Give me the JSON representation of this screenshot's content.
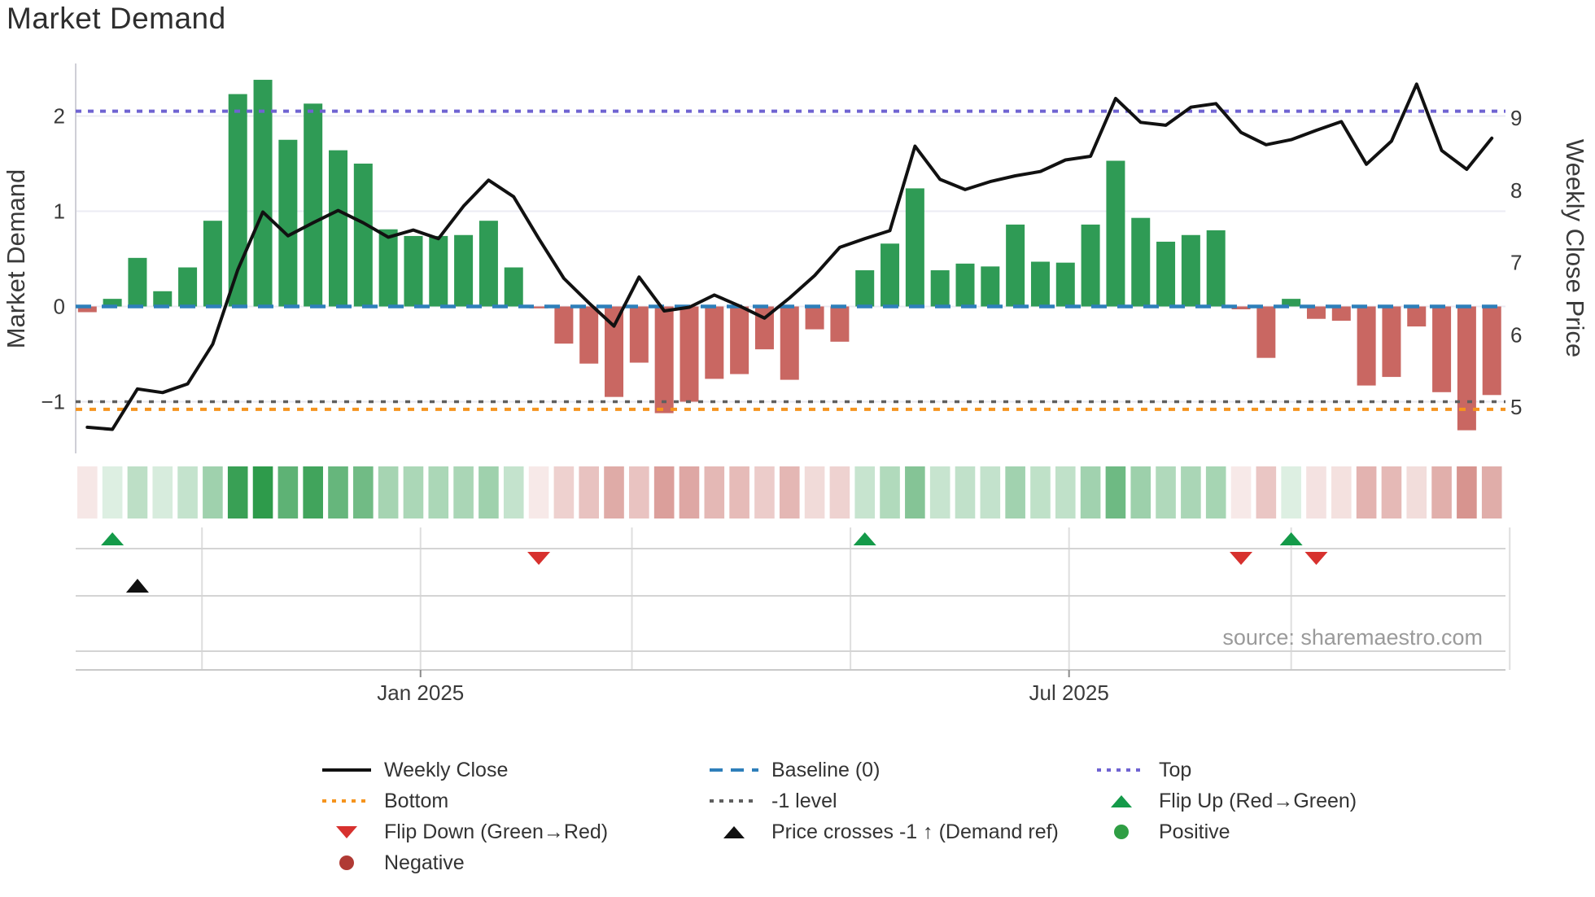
{
  "title": "Market Demand",
  "source": "source: sharemaestro.com",
  "axes": {
    "left_label": "Market Demand",
    "right_label": "Weekly Close Price",
    "left_ticks": [
      "2",
      "1",
      "0",
      "−1"
    ],
    "left_tick_values": [
      2,
      1,
      0,
      -1
    ],
    "right_ticks": [
      "9",
      "8",
      "7",
      "6",
      "5"
    ],
    "right_tick_values": [
      9,
      8,
      7,
      6,
      5
    ],
    "x_ticks": [
      "Jan 2025",
      "Jul 2025"
    ],
    "x_tick_dates": [
      "2025-01-01",
      "2025-07-01"
    ]
  },
  "chart_data": {
    "type": "combo",
    "x": [
      "2024-09-30",
      "2024-10-07",
      "2024-10-14",
      "2024-10-21",
      "2024-10-28",
      "2024-11-04",
      "2024-11-11",
      "2024-11-18",
      "2024-11-25",
      "2024-12-02",
      "2024-12-09",
      "2024-12-16",
      "2024-12-23",
      "2024-12-30",
      "2025-01-06",
      "2025-01-13",
      "2025-01-20",
      "2025-01-27",
      "2025-02-03",
      "2025-02-10",
      "2025-02-17",
      "2025-02-24",
      "2025-03-03",
      "2025-03-10",
      "2025-03-17",
      "2025-03-24",
      "2025-03-31",
      "2025-04-07",
      "2025-04-14",
      "2025-04-21",
      "2025-04-28",
      "2025-05-05",
      "2025-05-12",
      "2025-05-19",
      "2025-05-26",
      "2025-06-02",
      "2025-06-09",
      "2025-06-16",
      "2025-06-23",
      "2025-06-30",
      "2025-07-07",
      "2025-07-14",
      "2025-07-21",
      "2025-07-28",
      "2025-08-04",
      "2025-08-11",
      "2025-08-18",
      "2025-08-25",
      "2025-09-01",
      "2025-09-08",
      "2025-09-15",
      "2025-09-22",
      "2025-09-29",
      "2025-10-06",
      "2025-10-13",
      "2025-10-20",
      "2025-10-27"
    ],
    "series": [
      {
        "name": "Market Demand",
        "type": "bar",
        "axis": "left",
        "values": [
          -0.06,
          0.08,
          0.51,
          0.16,
          0.41,
          0.9,
          2.23,
          2.38,
          1.75,
          2.13,
          1.64,
          1.5,
          0.81,
          0.74,
          0.74,
          0.75,
          0.9,
          0.41,
          -0.02,
          -0.39,
          -0.6,
          -0.95,
          -0.59,
          -1.12,
          -1.0,
          -0.76,
          -0.71,
          -0.45,
          -0.77,
          -0.24,
          -0.37,
          0.38,
          0.66,
          1.24,
          0.38,
          0.45,
          0.42,
          0.86,
          0.47,
          0.46,
          0.86,
          1.53,
          0.93,
          0.68,
          0.75,
          0.8,
          -0.03,
          -0.54,
          0.08,
          -0.13,
          -0.15,
          -0.83,
          -0.74,
          -0.21,
          -0.9,
          -1.3,
          -0.93
        ]
      },
      {
        "name": "Weekly Close",
        "type": "line",
        "axis": "right",
        "values": [
          4.72,
          4.69,
          5.25,
          5.2,
          5.32,
          5.87,
          6.9,
          7.7,
          7.37,
          7.55,
          7.72,
          7.55,
          7.35,
          7.45,
          7.33,
          7.78,
          8.14,
          7.91,
          7.33,
          6.78,
          6.44,
          6.12,
          6.8,
          6.33,
          6.38,
          6.55,
          6.4,
          6.23,
          6.51,
          6.82,
          7.21,
          7.33,
          7.44,
          8.61,
          8.15,
          8.01,
          8.12,
          8.2,
          8.26,
          8.42,
          8.47,
          9.27,
          8.94,
          8.9,
          9.15,
          9.2,
          8.8,
          8.63,
          8.7,
          8.83,
          8.95,
          8.36,
          8.68,
          9.47,
          8.55,
          8.29,
          8.72
        ]
      }
    ],
    "levels": {
      "top": 2.05,
      "baseline": 0,
      "minus1": -1.0,
      "bottom": -1.08
    },
    "markers": {
      "flip_up_dates": [
        "2024-10-07",
        "2025-05-05",
        "2025-09-01"
      ],
      "flip_down_dates": [
        "2025-02-03",
        "2025-08-18",
        "2025-09-08"
      ],
      "price_cross_up_dates": [
        "2024-10-14"
      ]
    },
    "heatmap_source": "Market Demand values",
    "ylim_left": [
      -1.45,
      2.55
    ],
    "ylim_right": [
      4.6,
      9.6
    ],
    "grid": true,
    "legend_position": "bottom"
  },
  "colors": {
    "bar_positive": "#2f9b55",
    "bar_negative": "#c96762",
    "price_line": "#111111",
    "baseline": "#2e7fba",
    "top_level": "#6f63d2",
    "bottom_level": "#f5941e",
    "minus1_level": "#5f5f5f",
    "flip_up": "#149a49",
    "flip_down": "#d7312e",
    "positive_dot": "#2f9e44",
    "negative_dot": "#b03a34",
    "heat_green": "44,154,74",
    "heat_red": "192,87,80"
  },
  "legend": {
    "items": [
      {
        "label": "Weekly Close",
        "swatch": "solid-line",
        "color_key": "price_line",
        "col": 0,
        "row": 0
      },
      {
        "label": "Baseline (0)",
        "swatch": "dashed-line",
        "color_key": "baseline",
        "col": 1,
        "row": 0
      },
      {
        "label": "Top",
        "swatch": "dotted-line",
        "color_key": "top_level",
        "col": 2,
        "row": 0
      },
      {
        "label": "Bottom",
        "swatch": "dotted-line",
        "color_key": "bottom_level",
        "col": 0,
        "row": 1
      },
      {
        "label": "-1 level",
        "swatch": "dotted-line",
        "color_key": "minus1_level",
        "col": 1,
        "row": 1
      },
      {
        "label": "Flip Up (Red→Green)",
        "swatch": "tri-up",
        "color_key": "flip_up",
        "col": 2,
        "row": 1
      },
      {
        "label": "Flip Down (Green→Red)",
        "swatch": "tri-down",
        "color_key": "flip_down",
        "col": 0,
        "row": 2
      },
      {
        "label": "Price crosses -1 ↑ (Demand ref)",
        "swatch": "tri-up",
        "color_key": "price_line",
        "col": 1,
        "row": 2
      },
      {
        "label": "Positive",
        "swatch": "dot",
        "color_key": "positive_dot",
        "col": 2,
        "row": 2
      },
      {
        "label": "Negative",
        "swatch": "dot",
        "color_key": "negative_dot",
        "col": 0,
        "row": 3
      }
    ]
  }
}
